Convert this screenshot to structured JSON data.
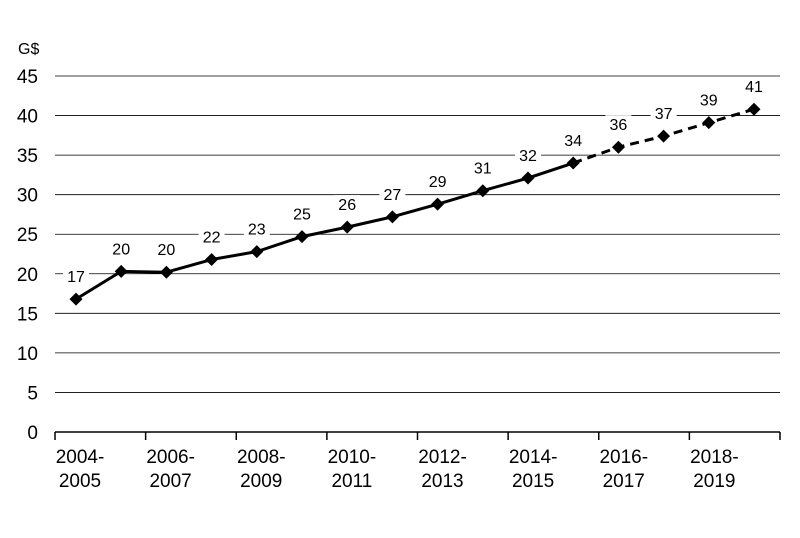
{
  "chart_data": {
    "type": "line",
    "title": "",
    "xlabel": "",
    "ylabel": "",
    "unit_label": "G$",
    "ylim": [
      0,
      45
    ],
    "yticks": [
      "0",
      "5",
      "10",
      "15",
      "20",
      "25",
      "30",
      "35",
      "40",
      "45"
    ],
    "grid": true,
    "legend": "none",
    "x_tick_labels": [
      [
        "2004-",
        "2005"
      ],
      [
        "2006-",
        "2007"
      ],
      [
        "2008-",
        "2009"
      ],
      [
        "2010-",
        "2011"
      ],
      [
        "2012-",
        "2013"
      ],
      [
        "2014-",
        "2015"
      ],
      [
        "2016-",
        "2017"
      ],
      [
        "2018-",
        "2019"
      ]
    ],
    "x": [
      "2004-2005",
      "2005-2006",
      "2006-2007",
      "2007-2008",
      "2008-2009",
      "2009-2010",
      "2010-2011",
      "2011-2012",
      "2012-2013",
      "2013-2014",
      "2014-2015",
      "2015-2016",
      "2016-2017",
      "2017-2018",
      "2018-2019",
      "2019-2020"
    ],
    "series": [
      {
        "values": [
          16.8,
          20.3,
          20.2,
          21.8,
          22.8,
          24.7,
          25.9,
          27.2,
          28.8,
          30.5,
          32.1,
          34.0,
          36.0,
          37.4,
          39.1,
          40.8
        ],
        "data_labels": [
          "17",
          "20",
          "20",
          "22",
          "23",
          "25",
          "26",
          "27",
          "29",
          "31",
          "32",
          "34",
          "36",
          "37",
          "39",
          "41"
        ],
        "solid_through_index": 11,
        "projected_from_index": 11,
        "color": "#000000",
        "marker": "diamond"
      }
    ]
  }
}
